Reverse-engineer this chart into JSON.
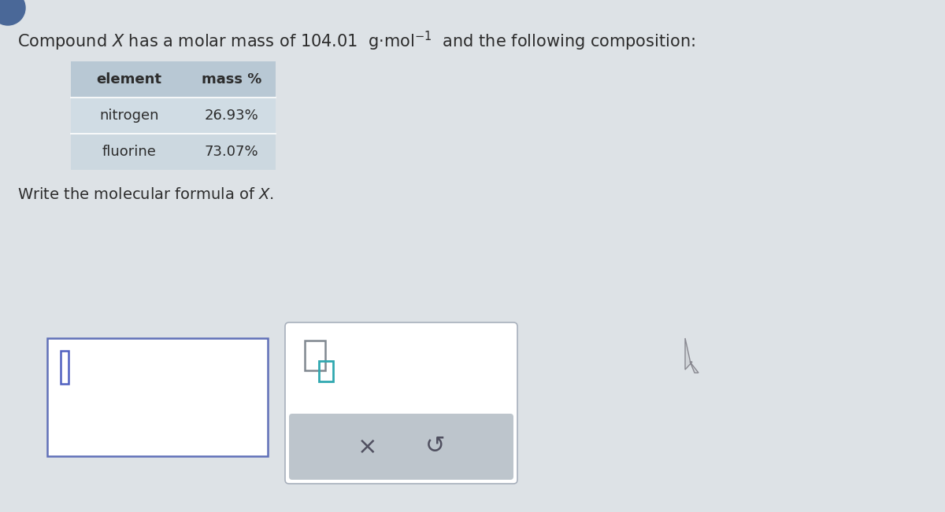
{
  "bg_color": "#dde2e6",
  "text_color": "#2c2c2c",
  "header_bg": "#b8c8d4",
  "row1_bg": "#d0dce4",
  "row2_bg": "#ccd8e0",
  "table_header": [
    "element",
    "mass %"
  ],
  "table_rows": [
    [
      "nitrogen",
      "26.93%"
    ],
    [
      "fluorine",
      "73.07%"
    ]
  ],
  "input_box1_border": "#6070b8",
  "cursor_color": "#5060c0",
  "input_box2_border": "#a8b0bc",
  "panel2_bg": "#bdc5cc",
  "icon_grey": "#808890",
  "icon_teal": "#30a8b0",
  "arrow_color": "#555555",
  "title_blue_dot_color": "#4060b0",
  "x_symbol_color": "#505060",
  "undo_symbol_color": "#505060"
}
